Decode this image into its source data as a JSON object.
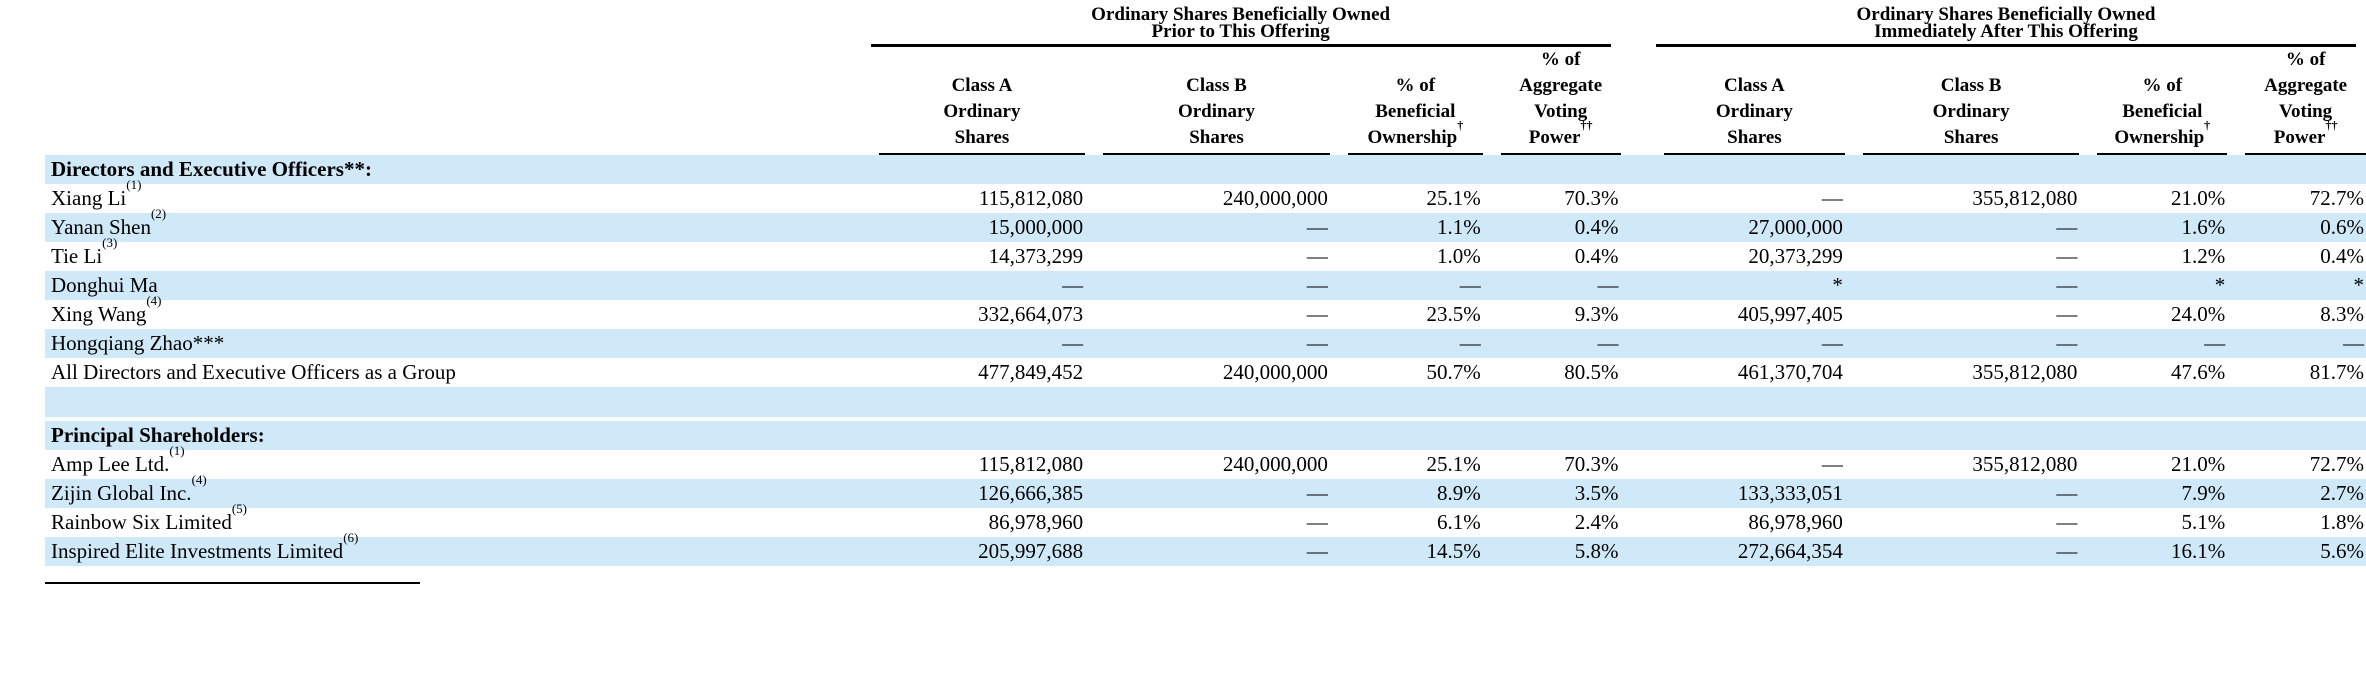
{
  "colors": {
    "row_highlight": "#CFE9F8",
    "text": "#000000",
    "rule": "#000000"
  },
  "table": {
    "groups": [
      {
        "title_line1": "Ordinary Shares Beneficially Owned",
        "title_line2": "Prior to This Offering"
      },
      {
        "title_line1": "Ordinary Shares Beneficially Owned",
        "title_line2": "Immediately After This Offering"
      }
    ],
    "columns": [
      {
        "id": "class-a-ordinary-shares",
        "lines": [
          "Class A",
          "Ordinary",
          "Shares"
        ],
        "sup": ""
      },
      {
        "id": "class-b-ordinary-shares",
        "lines": [
          "Class B",
          "Ordinary",
          "Shares"
        ],
        "sup": ""
      },
      {
        "id": "pct-beneficial-ownership",
        "lines": [
          "% of",
          "Beneficial",
          "Ownership"
        ],
        "sup": "†"
      },
      {
        "id": "pct-aggregate-voting-power",
        "lines": [
          "% of",
          "Aggregate",
          "Voting",
          "Power"
        ],
        "sup": "††"
      }
    ],
    "rows": [
      {
        "type": "section",
        "shaded": true,
        "label": "Directors and Executive Officers**:",
        "sup": ""
      },
      {
        "type": "data",
        "shaded": false,
        "label": "Xiang Li",
        "sup": "(1)",
        "cells": [
          "115,812,080",
          "240,000,000",
          "25.1%",
          "70.3%",
          "—",
          "355,812,080",
          "21.0%",
          "72.7%"
        ]
      },
      {
        "type": "data",
        "shaded": true,
        "label": "Yanan Shen",
        "sup": "(2)",
        "cells": [
          "15,000,000",
          "—",
          "1.1%",
          "0.4%",
          "27,000,000",
          "—",
          "1.6%",
          "0.6%"
        ]
      },
      {
        "type": "data",
        "shaded": false,
        "label": "Tie Li",
        "sup": "(3)",
        "cells": [
          "14,373,299",
          "—",
          "1.0%",
          "0.4%",
          "20,373,299",
          "—",
          "1.2%",
          "0.4%"
        ]
      },
      {
        "type": "data",
        "shaded": true,
        "label": "Donghui Ma",
        "sup": "",
        "cells": [
          "—",
          "—",
          "—",
          "—",
          "*",
          "—",
          "*",
          "*"
        ]
      },
      {
        "type": "data",
        "shaded": false,
        "label": "Xing Wang",
        "sup": "(4)",
        "cells": [
          "332,664,073",
          "—",
          "23.5%",
          "9.3%",
          "405,997,405",
          "—",
          "24.0%",
          "8.3%"
        ]
      },
      {
        "type": "data",
        "shaded": true,
        "label": "Hongqiang Zhao***",
        "sup": "",
        "cells": [
          "—",
          "—",
          "—",
          "—",
          "—",
          "—",
          "—",
          "—"
        ]
      },
      {
        "type": "data",
        "shaded": false,
        "label": "All Directors and Executive Officers as a Group",
        "sup": "",
        "cells": [
          "477,849,452",
          "240,000,000",
          "50.7%",
          "80.5%",
          "461,370,704",
          "355,812,080",
          "47.6%",
          "81.7%"
        ]
      },
      {
        "type": "spacer",
        "shaded": true,
        "label": "",
        "sup": ""
      },
      {
        "type": "section",
        "shaded": true,
        "gap_above": true,
        "label": "Principal Shareholders:",
        "sup": ""
      },
      {
        "type": "data",
        "shaded": false,
        "label": "Amp Lee Ltd.",
        "sup": "(1)",
        "cells": [
          "115,812,080",
          "240,000,000",
          "25.1%",
          "70.3%",
          "—",
          "355,812,080",
          "21.0%",
          "72.7%"
        ]
      },
      {
        "type": "data",
        "shaded": true,
        "label": "Zijin Global Inc.",
        "sup": "(4)",
        "cells": [
          "126,666,385",
          "—",
          "8.9%",
          "3.5%",
          "133,333,051",
          "—",
          "7.9%",
          "2.7%"
        ]
      },
      {
        "type": "data",
        "shaded": false,
        "label": "Rainbow Six Limited",
        "sup": "(5)",
        "cells": [
          "86,978,960",
          "—",
          "6.1%",
          "2.4%",
          "86,978,960",
          "—",
          "5.1%",
          "1.8%"
        ]
      },
      {
        "type": "data",
        "shaded": true,
        "label": "Inspired Elite Investments Limited",
        "sup": "(6)",
        "cells": [
          "205,997,688",
          "—",
          "14.5%",
          "5.8%",
          "272,664,354",
          "—",
          "16.1%",
          "5.6%"
        ]
      }
    ]
  }
}
